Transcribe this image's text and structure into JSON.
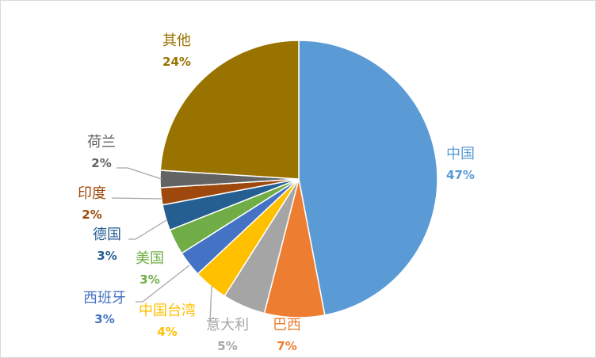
{
  "chart_data": {
    "type": "pie",
    "start_angle": "top, clockwise",
    "slices": [
      {
        "label": "中国",
        "value": 47,
        "display": "47%",
        "color": "#5B9BD5"
      },
      {
        "label": "巴西",
        "value": 7,
        "display": "7%",
        "color": "#ED7D31"
      },
      {
        "label": "意大利",
        "value": 5,
        "display": "5%",
        "color": "#A5A5A5"
      },
      {
        "label": "中国台湾",
        "value": 4,
        "display": "4%",
        "color": "#FFC000"
      },
      {
        "label": "西班牙",
        "value": 3,
        "display": "3%",
        "color": "#4472C4"
      },
      {
        "label": "美国",
        "value": 3,
        "display": "3%",
        "color": "#70AD47"
      },
      {
        "label": "德国",
        "value": 3,
        "display": "3%",
        "color": "#255E91"
      },
      {
        "label": "印度",
        "value": 2,
        "display": "2%",
        "color": "#9E480E"
      },
      {
        "label": "荷兰",
        "value": 2,
        "display": "2%",
        "color": "#636363"
      },
      {
        "label": "其他",
        "value": 24,
        "display": "24%",
        "color": "#997300"
      }
    ]
  }
}
